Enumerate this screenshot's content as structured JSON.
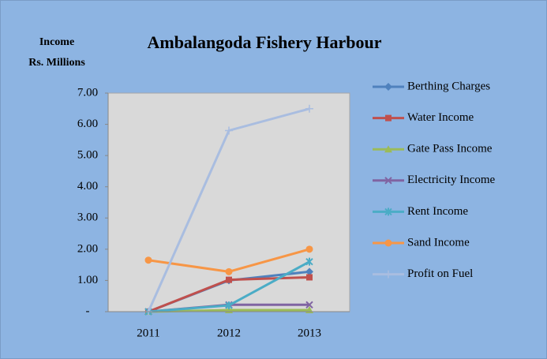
{
  "chart_data": {
    "type": "line",
    "title": "Ambalangoda Fishery Harbour",
    "ylabel": [
      "Income",
      "Rs. Millions"
    ],
    "categories": [
      "2011",
      "2012",
      "2013"
    ],
    "ylim": [
      0,
      7
    ],
    "yticks": [
      {
        "value": 0,
        "label": "-"
      },
      {
        "value": 1,
        "label": "1.00"
      },
      {
        "value": 2,
        "label": "2.00"
      },
      {
        "value": 3,
        "label": "3.00"
      },
      {
        "value": 4,
        "label": "4.00"
      },
      {
        "value": 5,
        "label": "5.00"
      },
      {
        "value": 6,
        "label": "6.00"
      },
      {
        "value": 7,
        "label": "7.00"
      }
    ],
    "grid": false,
    "legend": "right",
    "series": [
      {
        "name": "Berthing Charges",
        "color": "#4f81bd",
        "marker": "diamond",
        "values": [
          0,
          1.0,
          1.28
        ]
      },
      {
        "name": "Water Income",
        "color": "#c0504d",
        "marker": "square",
        "values": [
          0,
          1.02,
          1.1
        ]
      },
      {
        "name": "Gate Pass Income",
        "color": "#9bbb59",
        "marker": "triangle",
        "values": [
          0,
          0.05,
          0.05
        ]
      },
      {
        "name": "Electricity Income",
        "color": "#8064a2",
        "marker": "x",
        "values": [
          0,
          0.22,
          0.22
        ]
      },
      {
        "name": "Rent Income",
        "color": "#4bacc6",
        "marker": "star",
        "values": [
          0,
          0.2,
          1.6
        ]
      },
      {
        "name": "Sand Income",
        "color": "#f79646",
        "marker": "circle",
        "values": [
          1.65,
          1.28,
          2.0
        ]
      },
      {
        "name": "Profit on Fuel",
        "color": "#a9bde0",
        "marker": "plus",
        "values": [
          0,
          5.8,
          6.5
        ]
      }
    ]
  }
}
